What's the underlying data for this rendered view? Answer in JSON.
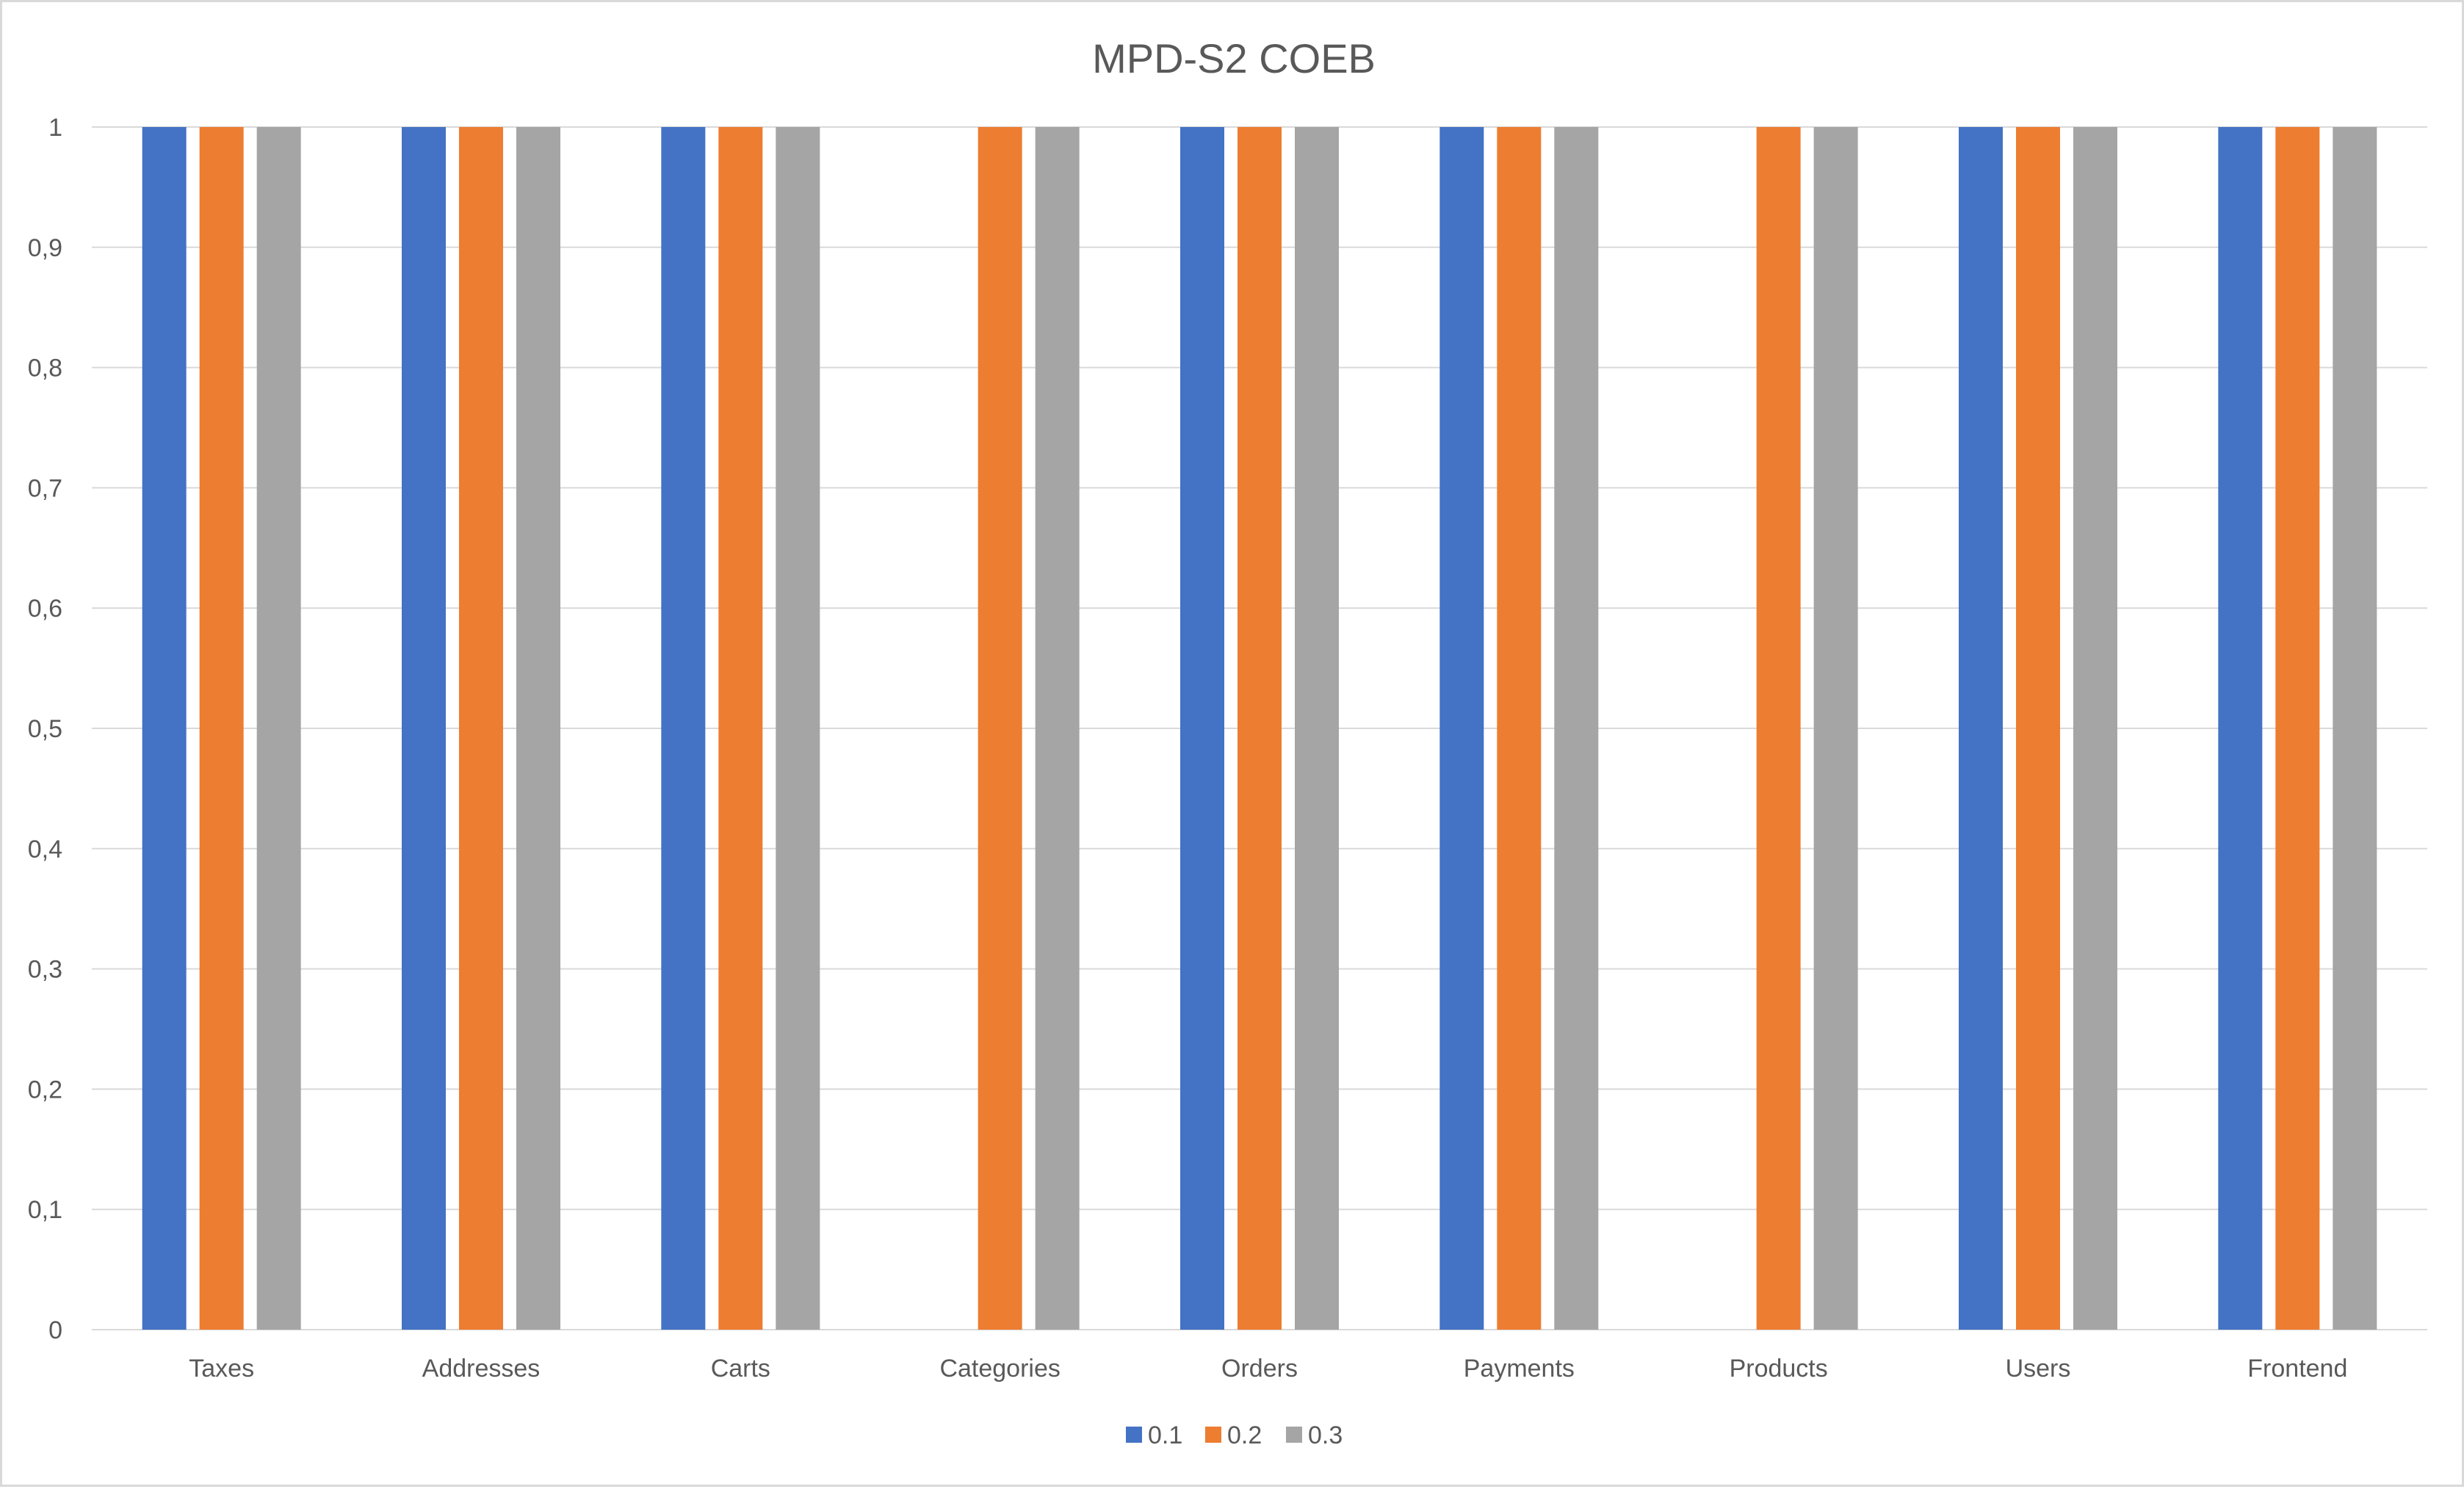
{
  "chart_data": {
    "type": "bar",
    "title": "MPD-S2 COEB",
    "xlabel": "",
    "ylabel": "",
    "categories": [
      "Taxes",
      "Addresses",
      "Carts",
      "Categories",
      "Orders",
      "Payments",
      "Products",
      "Users",
      "Frontend"
    ],
    "series": [
      {
        "name": "0.1",
        "color": "#4472c4",
        "values": [
          1,
          1,
          1,
          0,
          1,
          1,
          0,
          1,
          1
        ]
      },
      {
        "name": "0.2",
        "color": "#ed7d31",
        "values": [
          1,
          1,
          1,
          1,
          1,
          1,
          1,
          1,
          1
        ]
      },
      {
        "name": "0.3",
        "color": "#a5a5a5",
        "values": [
          1,
          1,
          1,
          1,
          1,
          1,
          1,
          1,
          1
        ]
      }
    ],
    "ylim": [
      0,
      1
    ],
    "yticks": [
      "0",
      "0,1",
      "0,2",
      "0,3",
      "0,4",
      "0,5",
      "0,6",
      "0,7",
      "0,8",
      "0,9",
      "1"
    ],
    "grid": true,
    "legend_position": "bottom"
  }
}
